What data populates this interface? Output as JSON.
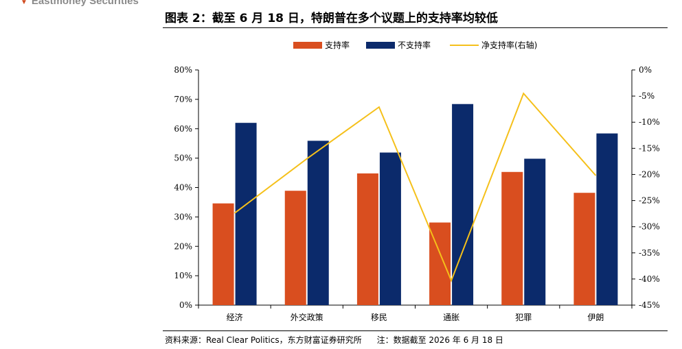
{
  "header": {
    "brand": "Eastmoney Securities",
    "title": "图表 2：截至 6 月 18 日，特朗普在多个议题上的支持率均较低"
  },
  "footer": {
    "source": "资料来源：Real Clear Politics，东方财富证券研究所",
    "note": "注：数据截至 2026 年 6 月 18 日"
  },
  "colors": {
    "support": "#d94e1f",
    "oppose": "#0b2a6b",
    "net": "#f5c01a"
  },
  "chart_data": {
    "type": "bar",
    "categories": [
      "经济",
      "外交政策",
      "移民",
      "通胀",
      "犯罪",
      "伊朗"
    ],
    "series": [
      {
        "name": "支持率",
        "type": "bar",
        "axis": "left",
        "values": [
          34.6,
          38.9,
          44.8,
          28.1,
          45.3,
          38.2
        ]
      },
      {
        "name": "不支持率",
        "type": "bar",
        "axis": "left",
        "values": [
          62.0,
          55.9,
          51.9,
          68.4,
          49.8,
          58.4
        ]
      },
      {
        "name": "净支持率(右轴)",
        "type": "line",
        "axis": "right",
        "values": [
          -27.4,
          -17.0,
          -7.1,
          -40.3,
          -4.5,
          -20.2
        ]
      }
    ],
    "ylim": [
      0,
      80
    ],
    "y2lim": [
      -45,
      0
    ],
    "yticks": [
      "0%",
      "10%",
      "20%",
      "30%",
      "40%",
      "50%",
      "60%",
      "70%",
      "80%"
    ],
    "y2ticks": [
      "-45%",
      "-40%",
      "-35%",
      "-30%",
      "-25%",
      "-20%",
      "-15%",
      "-10%",
      "-5%",
      "0%"
    ],
    "legend_position": "top"
  }
}
